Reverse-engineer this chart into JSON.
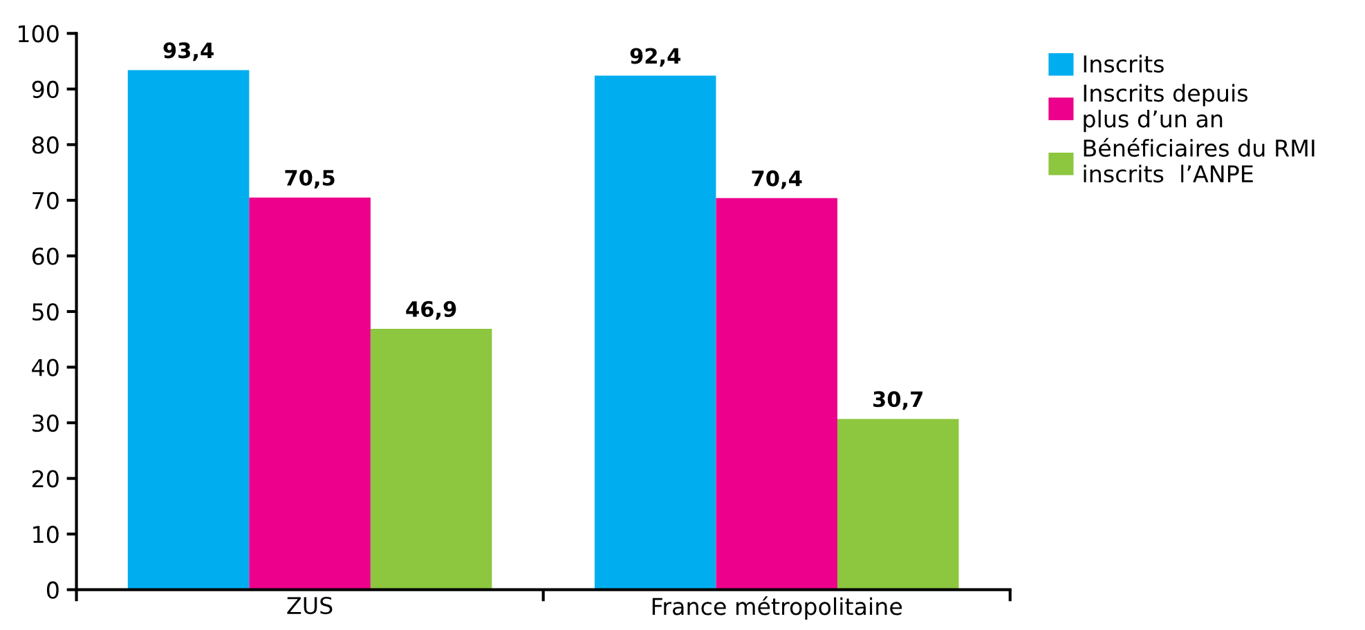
{
  "chart_data": {
    "type": "bar",
    "categories": [
      "ZUS",
      "France métropolitaine"
    ],
    "series": [
      {
        "name": "Inscrits",
        "color": "#00aeef",
        "values": [
          93.4,
          92.4
        ],
        "value_labels": [
          "93,4",
          "92,4"
        ]
      },
      {
        "name": "Inscrits depuis\nplus d’un an",
        "color": "#ec008c",
        "values": [
          70.5,
          70.4
        ],
        "value_labels": [
          "70,5",
          "70,4"
        ]
      },
      {
        "name": "Bénéficiaires du RMI\ninscrits  l’ANPE",
        "color": "#8dc63f",
        "values": [
          46.9,
          30.7
        ],
        "value_labels": [
          "46,9",
          "30,7"
        ]
      }
    ],
    "ylim": [
      0,
      100
    ],
    "yticks": [
      0,
      10,
      20,
      30,
      40,
      50,
      60,
      70,
      80,
      90,
      100
    ],
    "grid": false,
    "legend": "right"
  }
}
